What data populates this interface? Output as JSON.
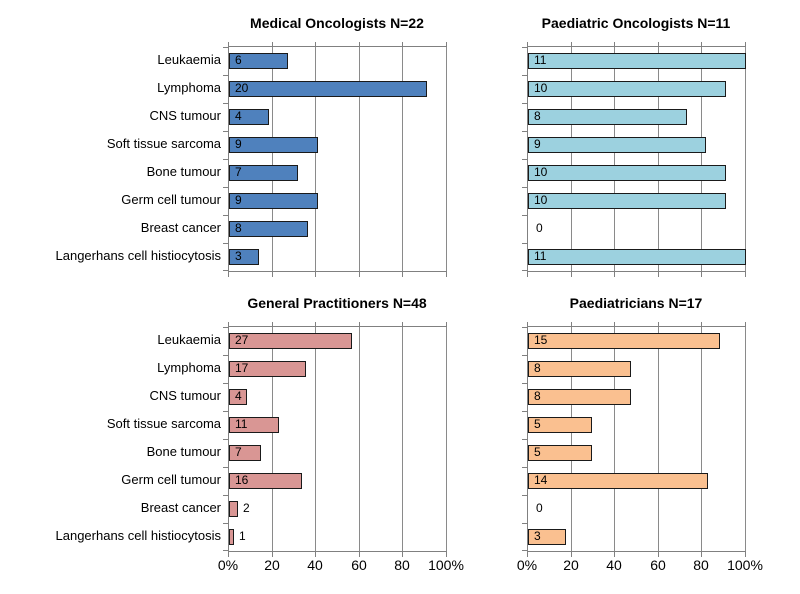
{
  "figure": {
    "background": "#ffffff",
    "text_color": "#000000",
    "gridline_color": "#8a8a8a",
    "axis_color": "#808080",
    "bar_border_color": "#1a1a1a"
  },
  "x_axis": {
    "min": 0,
    "max": 100,
    "step": 20,
    "tick_labels": [
      "0%",
      "20",
      "40",
      "60",
      "80",
      "100%"
    ]
  },
  "chart_data": [
    {
      "type": "bar",
      "orientation": "horizontal",
      "title": "Medical Oncologists N=22",
      "n": 22,
      "bar_color": "#4F81BD",
      "categories": [
        "Leukaemia",
        "Lymphoma",
        "CNS tumour",
        "Soft tissue sarcoma",
        "Bone tumour",
        "Germ cell tumour",
        "Breast cancer",
        "Langerhans cell histiocytosis"
      ],
      "values": [
        6,
        20,
        4,
        9,
        7,
        9,
        8,
        3
      ],
      "percent_of_n": [
        27.3,
        90.9,
        18.2,
        40.9,
        31.8,
        40.9,
        36.4,
        13.6
      ],
      "xlim": [
        0,
        100
      ],
      "grid": true,
      "show_category_labels": true,
      "show_x_tick_labels": false
    },
    {
      "type": "bar",
      "orientation": "horizontal",
      "title": "Paediatric Oncologists N=11",
      "n": 11,
      "bar_color": "#9CD1DF",
      "categories": [
        "Leukaemia",
        "Lymphoma",
        "CNS tumour",
        "Soft tissue sarcoma",
        "Bone tumour",
        "Germ cell tumour",
        "Breast cancer",
        "Langerhans cell histiocytosis"
      ],
      "values": [
        11,
        10,
        8,
        9,
        10,
        10,
        0,
        11
      ],
      "percent_of_n": [
        100,
        90.9,
        72.7,
        81.8,
        90.9,
        90.9,
        0,
        100
      ],
      "xlim": [
        0,
        100
      ],
      "grid": true,
      "show_category_labels": false,
      "show_x_tick_labels": false
    },
    {
      "type": "bar",
      "orientation": "horizontal",
      "title": "General Practitioners N=48",
      "n": 48,
      "bar_color": "#D99694",
      "categories": [
        "Leukaemia",
        "Lymphoma",
        "CNS tumour",
        "Soft tissue sarcoma",
        "Bone tumour",
        "Germ cell tumour",
        "Breast cancer",
        "Langerhans cell histiocytosis"
      ],
      "values": [
        27,
        17,
        4,
        11,
        7,
        16,
        2,
        1
      ],
      "percent_of_n": [
        56.3,
        35.4,
        8.3,
        22.9,
        14.6,
        33.3,
        4.2,
        2.1
      ],
      "xlim": [
        0,
        100
      ],
      "grid": true,
      "show_category_labels": true,
      "show_x_tick_labels": true
    },
    {
      "type": "bar",
      "orientation": "horizontal",
      "title": "Paediatricians N=17",
      "n": 17,
      "bar_color": "#FAC090",
      "categories": [
        "Leukaemia",
        "Lymphoma",
        "CNS tumour",
        "Soft tissue sarcoma",
        "Bone tumour",
        "Germ cell tumour",
        "Breast cancer",
        "Langerhans cell histiocytosis"
      ],
      "values": [
        15,
        8,
        8,
        5,
        5,
        14,
        0,
        3
      ],
      "percent_of_n": [
        88.2,
        47.1,
        47.1,
        29.4,
        29.4,
        82.4,
        0,
        17.6
      ],
      "xlim": [
        0,
        100
      ],
      "grid": true,
      "show_category_labels": false,
      "show_x_tick_labels": true
    }
  ]
}
